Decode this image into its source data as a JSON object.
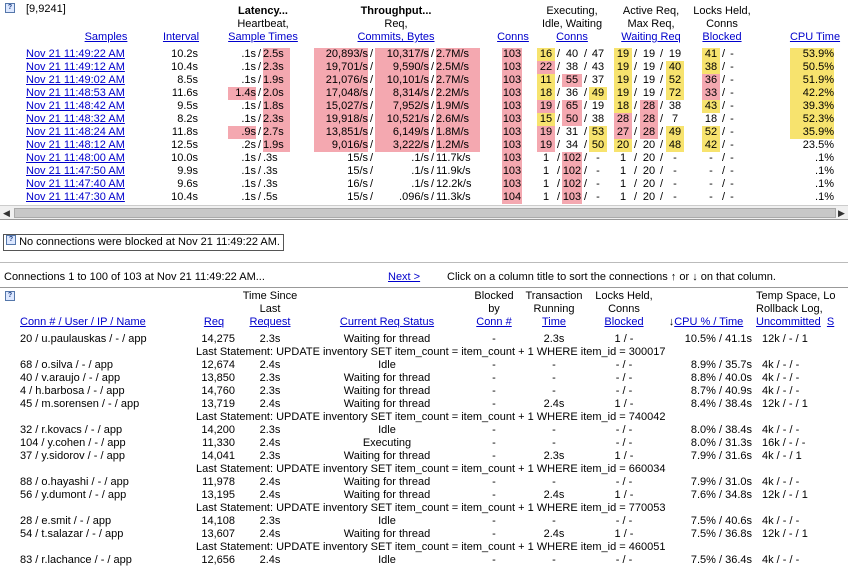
{
  "top": {
    "range_label": "[9,9241]",
    "headers": {
      "samples": "Samples",
      "interval": "Interval",
      "latency_title": "Latency...",
      "latency_sub": "Heartbeat,",
      "latency_link": "Sample Times",
      "throughput_title": "Throughput...",
      "throughput_sub": "Req,",
      "throughput_link": "Commits, Bytes",
      "conns": "Conns",
      "exec_l1": "Executing,",
      "exec_l2": "Idle, Waiting",
      "exec_link": "Conns",
      "active_l1": "Active Req,",
      "active_l2": "Max Req,",
      "active_link": "Waiting Req",
      "locks_l1": "Locks Held,",
      "locks_l2": "Conns",
      "locks_link": "Blocked",
      "cpu_link": "CPU Time"
    },
    "rows": [
      {
        "time": "Nov 21 11:49:22 AM",
        "interval": "10.2s",
        "lat_a": ".1s",
        "lat_b": "2.5s",
        "req": "20,893/s",
        "commits": "10,317/s",
        "bytes": "2.7M/s",
        "conns": "103",
        "exe": "16",
        "idle": "40",
        "wait": "47",
        "act": "19",
        "max": "19",
        "wreq": "19",
        "locks": "41",
        "blocked": "-",
        "cpu": "53.9%"
      },
      {
        "time": "Nov 21 11:49:12 AM",
        "interval": "10.4s",
        "lat_a": ".1s",
        "lat_b": "2.3s",
        "req": "19,701/s",
        "commits": "9,590/s",
        "bytes": "2.5M/s",
        "conns": "103",
        "exe": "22",
        "idle": "38",
        "wait": "43",
        "act": "19",
        "max": "19",
        "wreq": "40",
        "locks": "38",
        "blocked": "-",
        "cpu": "50.5%"
      },
      {
        "time": "Nov 21 11:49:02 AM",
        "interval": "8.5s",
        "lat_a": ".1s",
        "lat_b": "1.9s",
        "req": "21,076/s",
        "commits": "10,101/s",
        "bytes": "2.7M/s",
        "conns": "103",
        "exe": "11",
        "idle": "55",
        "wait": "37",
        "act": "19",
        "max": "19",
        "wreq": "52",
        "locks": "36",
        "blocked": "-",
        "cpu": "51.9%"
      },
      {
        "time": "Nov 21 11:48:53 AM",
        "interval": "11.6s",
        "lat_a": "1.4s",
        "lat_b": "2.0s",
        "req": "17,048/s",
        "commits": "8,314/s",
        "bytes": "2.2M/s",
        "conns": "103",
        "exe": "18",
        "idle": "36",
        "wait": "49",
        "act": "19",
        "max": "19",
        "wreq": "72",
        "locks": "33",
        "blocked": "-",
        "cpu": "42.2%"
      },
      {
        "time": "Nov 21 11:48:42 AM",
        "interval": "9.5s",
        "lat_a": ".1s",
        "lat_b": "1.8s",
        "req": "15,027/s",
        "commits": "7,952/s",
        "bytes": "1.9M/s",
        "conns": "103",
        "exe": "19",
        "idle": "65",
        "wait": "19",
        "act": "18",
        "max": "28",
        "wreq": "38",
        "locks": "43",
        "blocked": "-",
        "cpu": "39.3%"
      },
      {
        "time": "Nov 21 11:48:32 AM",
        "interval": "8.2s",
        "lat_a": ".1s",
        "lat_b": "2.3s",
        "req": "19,918/s",
        "commits": "10,521/s",
        "bytes": "2.6M/s",
        "conns": "103",
        "exe": "15",
        "idle": "50",
        "wait": "38",
        "act": "28",
        "max": "28",
        "wreq": "7",
        "locks": "18",
        "blocked": "-",
        "cpu": "52.3%"
      },
      {
        "time": "Nov 21 11:48:24 AM",
        "interval": "11.8s",
        "lat_a": ".9s",
        "lat_b": "2.7s",
        "req": "13,851/s",
        "commits": "6,149/s",
        "bytes": "1.8M/s",
        "conns": "103",
        "exe": "19",
        "idle": "31",
        "wait": "53",
        "act": "27",
        "max": "28",
        "wreq": "49",
        "locks": "52",
        "blocked": "-",
        "cpu": "35.9%"
      },
      {
        "time": "Nov 21 11:48:12 AM",
        "interval": "12.5s",
        "lat_a": ".2s",
        "lat_b": "1.9s",
        "req": "9,016/s",
        "commits": "3,222/s",
        "bytes": "1.2M/s",
        "conns": "103",
        "exe": "19",
        "idle": "34",
        "wait": "50",
        "act": "20",
        "max": "20",
        "wreq": "48",
        "locks": "42",
        "blocked": "-",
        "cpu": "23.5%"
      },
      {
        "time": "Nov 21 11:48:00 AM",
        "interval": "10.0s",
        "lat_a": ".1s",
        "lat_b": ".3s",
        "req": "15/s",
        "commits": ".1/s",
        "bytes": "11.7k/s",
        "conns": "103",
        "exe": "1",
        "idle": "102",
        "wait": "-",
        "act": "1",
        "max": "20",
        "wreq": "-",
        "locks": "-",
        "blocked": "-",
        "cpu": ".1%"
      },
      {
        "time": "Nov 21 11:47:50 AM",
        "interval": "9.9s",
        "lat_a": ".1s",
        "lat_b": ".3s",
        "req": "15/s",
        "commits": ".1/s",
        "bytes": "11.9k/s",
        "conns": "103",
        "exe": "1",
        "idle": "102",
        "wait": "-",
        "act": "1",
        "max": "20",
        "wreq": "-",
        "locks": "-",
        "blocked": "-",
        "cpu": ".1%"
      },
      {
        "time": "Nov 21 11:47:40 AM",
        "interval": "9.6s",
        "lat_a": ".1s",
        "lat_b": ".3s",
        "req": "16/s",
        "commits": ".1/s",
        "bytes": "12.2k/s",
        "conns": "103",
        "exe": "1",
        "idle": "102",
        "wait": "-",
        "act": "1",
        "max": "20",
        "wreq": "-",
        "locks": "-",
        "blocked": "-",
        "cpu": ".1%"
      },
      {
        "time": "Nov 21 11:47:30 AM",
        "interval": "10.4s",
        "lat_a": ".1s",
        "lat_b": ".5s",
        "req": "15/s",
        "commits": ".096/s",
        "bytes": "11.3k/s",
        "conns": "104",
        "exe": "1",
        "idle": "103",
        "wait": "-",
        "act": "1",
        "max": "20",
        "wreq": "-",
        "locks": "-",
        "blocked": "-",
        "cpu": ".1%"
      }
    ]
  },
  "message": "No connections were blocked at Nov 21 11:49:22 AM.",
  "sort_bar": {
    "summary": "Connections 1 to 100 of 103 at Nov 21 11:49:22 AM...",
    "next_label": "Next >",
    "hint_pre": "Click on a column title to sort the connections",
    "hint_or": "or",
    "hint_post": "on that column."
  },
  "conn": {
    "headers": {
      "name": "Conn # / User / IP / Name",
      "req": "Req",
      "since_l1": "Time Since",
      "since_l2": "Last",
      "since_link": "Request",
      "status": "Current Req Status",
      "blocked_l1": "Blocked",
      "blocked_l2": "by",
      "blocked_link": "Conn #",
      "txn_l1": "Transaction",
      "txn_l2": "Running",
      "txn_link": "Time",
      "locks_l1": "Locks Held,",
      "locks_l2": "Conns",
      "locks_link": "Blocked",
      "cpu_link": "CPU % / Time",
      "temp_l1": "Temp Space, Lo",
      "temp_l2": "Rollback Log,",
      "temp_link": "Uncommitted",
      "temp_extra": "S"
    },
    "rows": [
      {
        "kind": "row",
        "name": "20 / u.paulauskas / - / app",
        "req": "14,275",
        "since": "2.3s",
        "status": "Waiting for thread",
        "blocked": "-",
        "txn": "2.3s",
        "locks": "1 / -",
        "cpu": "10.5% / 41.1s",
        "temp": "12k / - / 1"
      },
      {
        "kind": "stmt",
        "text": "Last Statement: UPDATE inventory SET item_count = item_count + 1 WHERE item_id = 300017"
      },
      {
        "kind": "row",
        "name": "68 / o.silva / - / app",
        "req": "12,674",
        "since": "2.4s",
        "status": "Idle",
        "blocked": "-",
        "txn": "-",
        "locks": "- / -",
        "cpu": "8.9% / 35.7s",
        "temp": "4k / - / -"
      },
      {
        "kind": "row",
        "name": "40 / v.araujo / - / app",
        "req": "13,850",
        "since": "2.3s",
        "status": "Waiting for thread",
        "blocked": "-",
        "txn": "-",
        "locks": "- / -",
        "cpu": "8.8% / 40.0s",
        "temp": "4k / - / -"
      },
      {
        "kind": "row",
        "name": "4 / h.barbosa / - / app",
        "req": "14,760",
        "since": "2.3s",
        "status": "Waiting for thread",
        "blocked": "-",
        "txn": "-",
        "locks": "- / -",
        "cpu": "8.7% / 40.9s",
        "temp": "4k / - / -"
      },
      {
        "kind": "row",
        "name": "45 / m.sorensen / - / app",
        "req": "13,719",
        "since": "2.4s",
        "status": "Waiting for thread",
        "blocked": "-",
        "txn": "2.4s",
        "locks": "1 / -",
        "cpu": "8.4% / 38.4s",
        "temp": "12k / - / 1"
      },
      {
        "kind": "stmt",
        "text": "Last Statement: UPDATE inventory SET item_count = item_count + 1 WHERE item_id = 740042"
      },
      {
        "kind": "row",
        "name": "32 / r.kovacs / - / app",
        "req": "14,200",
        "since": "2.3s",
        "status": "Idle",
        "blocked": "-",
        "txn": "-",
        "locks": "- / -",
        "cpu": "8.0% / 38.4s",
        "temp": "4k / - / -"
      },
      {
        "kind": "row",
        "name": "104 / y.cohen / - / app",
        "req": "11,330",
        "since": "2.4s",
        "status": "Executing",
        "blocked": "-",
        "txn": "-",
        "locks": "- / -",
        "cpu": "8.0% / 31.3s",
        "temp": "16k / - / -"
      },
      {
        "kind": "row",
        "name": "37 / y.sidorov / - / app",
        "req": "14,041",
        "since": "2.3s",
        "status": "Waiting for thread",
        "blocked": "-",
        "txn": "2.3s",
        "locks": "1 / -",
        "cpu": "7.9% / 31.6s",
        "temp": "4k / - / 1"
      },
      {
        "kind": "stmt",
        "text": "Last Statement: UPDATE inventory SET item_count = item_count + 1 WHERE item_id = 660034"
      },
      {
        "kind": "row",
        "name": "88 / o.hayashi / - / app",
        "req": "11,978",
        "since": "2.4s",
        "status": "Waiting for thread",
        "blocked": "-",
        "txn": "-",
        "locks": "- / -",
        "cpu": "7.9% / 31.0s",
        "temp": "4k / - / -"
      },
      {
        "kind": "row",
        "name": "56 / y.dumont / - / app",
        "req": "13,195",
        "since": "2.4s",
        "status": "Waiting for thread",
        "blocked": "-",
        "txn": "2.4s",
        "locks": "1 / -",
        "cpu": "7.6% / 34.8s",
        "temp": "12k / - / 1"
      },
      {
        "kind": "stmt",
        "text": "Last Statement: UPDATE inventory SET item_count = item_count + 1 WHERE item_id = 770053"
      },
      {
        "kind": "row",
        "name": "28 / e.smit / - / app",
        "req": "14,108",
        "since": "2.3s",
        "status": "Idle",
        "blocked": "-",
        "txn": "-",
        "locks": "- / -",
        "cpu": "7.5% / 40.6s",
        "temp": "4k / - / -"
      },
      {
        "kind": "row",
        "name": "54 / t.salazar / - / app",
        "req": "13,607",
        "since": "2.4s",
        "status": "Waiting for thread",
        "blocked": "-",
        "txn": "2.4s",
        "locks": "1 / -",
        "cpu": "7.5% / 36.8s",
        "temp": "12k / - / 1"
      },
      {
        "kind": "stmt",
        "text": "Last Statement: UPDATE inventory SET item_count = item_count + 1 WHERE item_id = 460051"
      },
      {
        "kind": "row",
        "name": "83 / r.lachance / - / app",
        "req": "12,656",
        "since": "2.4s",
        "status": "Idle",
        "blocked": "-",
        "txn": "-",
        "locks": "- / -",
        "cpu": "7.5% / 36.4s",
        "temp": "4k / - / -"
      }
    ]
  },
  "colors": {
    "highlight_red": "#f4a8b0",
    "highlight_yellow": "#f7e36e",
    "link": "#0000cc"
  }
}
